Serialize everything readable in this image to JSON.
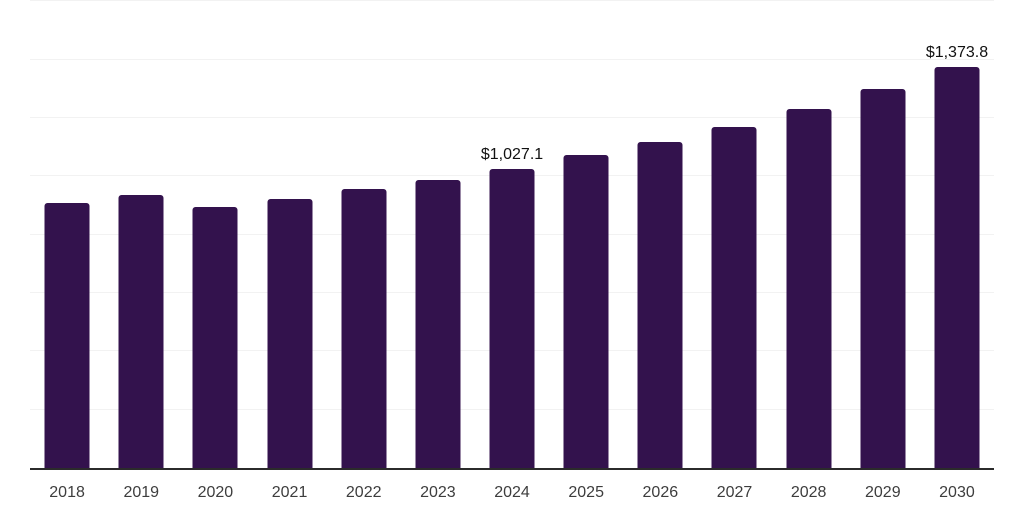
{
  "chart_data": {
    "type": "bar",
    "title": "",
    "xlabel": "",
    "ylabel": "",
    "categories": [
      "2018",
      "2019",
      "2020",
      "2021",
      "2022",
      "2023",
      "2024",
      "2025",
      "2026",
      "2027",
      "2028",
      "2029",
      "2030"
    ],
    "values": [
      908,
      936,
      896,
      922,
      956,
      988,
      1027.1,
      1072,
      1118,
      1170,
      1232,
      1300,
      1373.8
    ],
    "value_labels": [
      null,
      null,
      null,
      null,
      null,
      null,
      "$1,027.1",
      null,
      null,
      null,
      null,
      null,
      "$1,373.8"
    ],
    "ylim": [
      0,
      1605
    ],
    "gridlines": [
      200,
      400,
      600,
      800,
      1000,
      1200,
      1400,
      1600
    ],
    "grid": true,
    "legend_position": "none",
    "colors": {
      "bar": "#33124d",
      "gridline": "#f2f2f2",
      "axis": "#2b2b2b",
      "tick_label": "#3d3d3d",
      "data_label": "#111111",
      "background": "#ffffff"
    }
  }
}
